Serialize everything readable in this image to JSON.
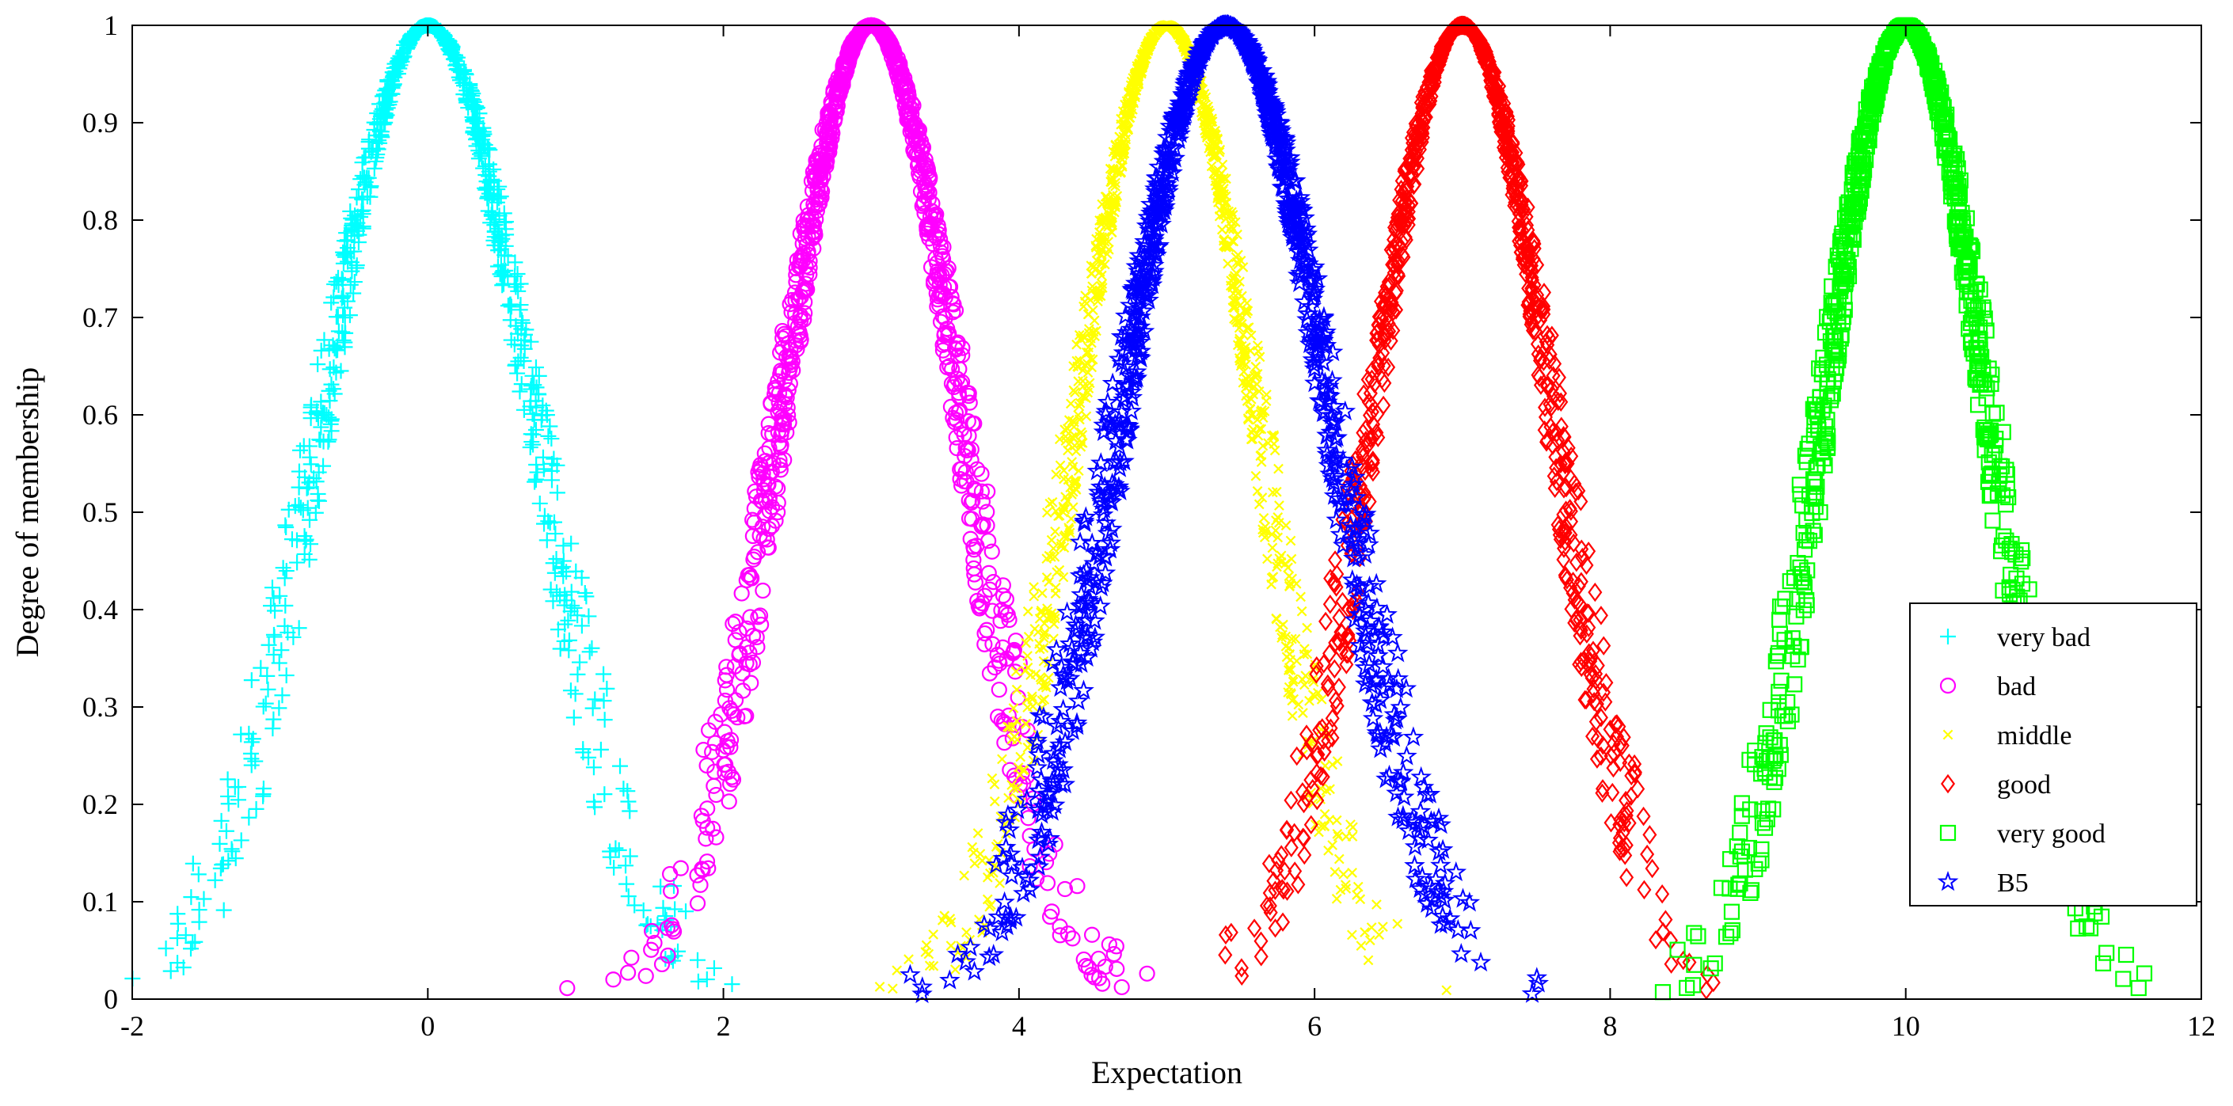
{
  "chart_data": {
    "type": "scatter",
    "title": "",
    "xlabel": "Expectation",
    "ylabel": "Degree of membership",
    "xlim": [
      -2,
      12
    ],
    "ylim": [
      0,
      1
    ],
    "xticks": [
      -2,
      0,
      2,
      4,
      6,
      8,
      10,
      12
    ],
    "yticks": [
      0,
      0.1,
      0.2,
      0.3,
      0.4,
      0.5,
      0.6,
      0.7,
      0.8,
      0.9,
      1
    ],
    "xtick_labels": [
      "-2",
      "0",
      "2",
      "4",
      "6",
      "8",
      "10",
      "12"
    ],
    "ytick_labels": [
      "0",
      "0.1",
      "0.2",
      "0.3",
      "0.4",
      "0.5",
      "0.6",
      "0.7",
      "0.8",
      "0.9",
      "1"
    ],
    "grid": false,
    "legend_position": "bottom-right",
    "series": [
      {
        "name": "very bad",
        "marker": "plus",
        "color": "#00FFFF",
        "center": 0,
        "spread": 0.7,
        "count": 900
      },
      {
        "name": "bad",
        "marker": "circle",
        "color": "#FF00FF",
        "center": 3,
        "spread": 0.6,
        "count": 1000
      },
      {
        "name": "middle",
        "marker": "x",
        "color": "#FFFF00",
        "center": 5,
        "spread": 0.6,
        "count": 1200
      },
      {
        "name": "good",
        "marker": "diamond",
        "color": "#FF0000",
        "center": 7,
        "spread": 0.6,
        "count": 1000
      },
      {
        "name": "very good",
        "marker": "square",
        "color": "#00FF00",
        "center": 10,
        "spread": 0.55,
        "count": 1000
      },
      {
        "name": "B5",
        "marker": "star",
        "color": "#0000FF",
        "center": 5.4,
        "spread": 0.7,
        "count": 1100
      }
    ]
  }
}
